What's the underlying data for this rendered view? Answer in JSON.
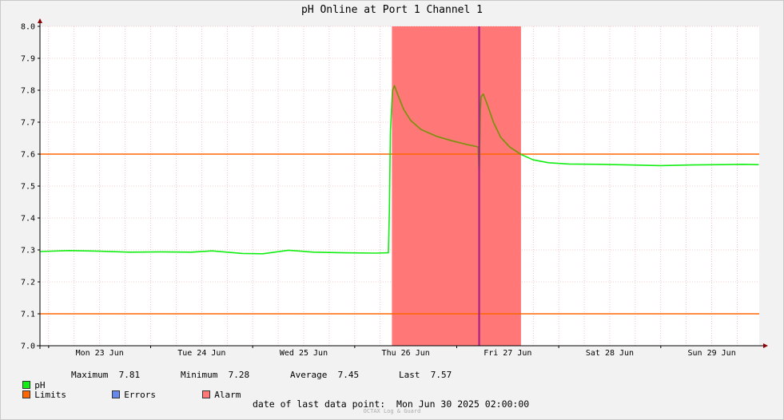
{
  "title": "pH Online at Port 1 Channel 1",
  "chart_data": {
    "type": "line",
    "title": "pH Online at Port 1 Channel 1",
    "ylim": [
      7.0,
      8.0
    ],
    "yticks": [
      "7.0",
      "7.1",
      "7.2",
      "7.3",
      "7.4",
      "7.5",
      "7.6",
      "7.7",
      "7.8",
      "7.9",
      "8.0"
    ],
    "x_range_days": [
      22.915,
      29.965
    ],
    "xticks": [
      {
        "label": "Mon 23 Jun",
        "day": 23.5
      },
      {
        "label": "Tue 24 Jun",
        "day": 24.5
      },
      {
        "label": "Wed 25 Jun",
        "day": 25.5
      },
      {
        "label": "Thu 26 Jun",
        "day": 26.5
      },
      {
        "label": "Fri 27 Jun",
        "day": 27.5
      },
      {
        "label": "Sat 28 Jun",
        "day": 28.5
      },
      {
        "label": "Sun 29 Jun",
        "day": 29.5
      }
    ],
    "grid": true,
    "limits": [
      7.1,
      7.6
    ],
    "alarm_band_days": [
      26.365,
      27.63
    ],
    "error_marker_day": 27.22,
    "series": [
      {
        "name": "pH",
        "color": "#11ee11",
        "points": [
          [
            22.92,
            7.295
          ],
          [
            23.2,
            7.298
          ],
          [
            23.5,
            7.296
          ],
          [
            23.8,
            7.293
          ],
          [
            24.1,
            7.294
          ],
          [
            24.4,
            7.293
          ],
          [
            24.6,
            7.297
          ],
          [
            24.9,
            7.289
          ],
          [
            25.1,
            7.288
          ],
          [
            25.35,
            7.299
          ],
          [
            25.6,
            7.293
          ],
          [
            25.9,
            7.291
          ],
          [
            26.2,
            7.29
          ],
          [
            26.33,
            7.291
          ],
          [
            26.34,
            7.42
          ],
          [
            26.35,
            7.67
          ],
          [
            26.37,
            7.8
          ],
          [
            26.39,
            7.814
          ],
          [
            26.43,
            7.78
          ],
          [
            26.48,
            7.74
          ],
          [
            26.55,
            7.705
          ],
          [
            26.65,
            7.677
          ],
          [
            26.8,
            7.656
          ],
          [
            26.95,
            7.642
          ],
          [
            27.1,
            7.63
          ],
          [
            27.19,
            7.624
          ],
          [
            27.21,
            7.622
          ],
          [
            27.22,
            7.53
          ],
          [
            27.23,
            7.735
          ],
          [
            27.24,
            7.78
          ],
          [
            27.26,
            7.788
          ],
          [
            27.3,
            7.755
          ],
          [
            27.36,
            7.7
          ],
          [
            27.43,
            7.653
          ],
          [
            27.52,
            7.622
          ],
          [
            27.63,
            7.599
          ],
          [
            27.75,
            7.582
          ],
          [
            27.9,
            7.573
          ],
          [
            28.1,
            7.569
          ],
          [
            28.4,
            7.568
          ],
          [
            28.7,
            7.566
          ],
          [
            29.0,
            7.564
          ],
          [
            29.3,
            7.566
          ],
          [
            29.6,
            7.567
          ],
          [
            29.8,
            7.568
          ],
          [
            29.96,
            7.567
          ]
        ]
      }
    ]
  },
  "legend": {
    "ph": {
      "label": "pH",
      "color": "#11ee11"
    },
    "limits": {
      "label": "Limits",
      "color": "#ff6600"
    },
    "errors": {
      "label": "Errors",
      "color": "#6688ee"
    },
    "alarm": {
      "label": "Alarm",
      "color": "#ff7777"
    }
  },
  "stats": {
    "maximum_label": "Maximum",
    "maximum_value": "7.81",
    "minimum_label": "Minimum",
    "minimum_value": "7.28",
    "average_label": "Average",
    "average_value": "7.45",
    "last_label": "Last",
    "last_value": "7.57"
  },
  "footer": {
    "last_point_label": "date of last data point:",
    "last_point_value": "Mon Jun 30 2025 02:00:00",
    "brand": "OCTAX Log & Guard"
  }
}
